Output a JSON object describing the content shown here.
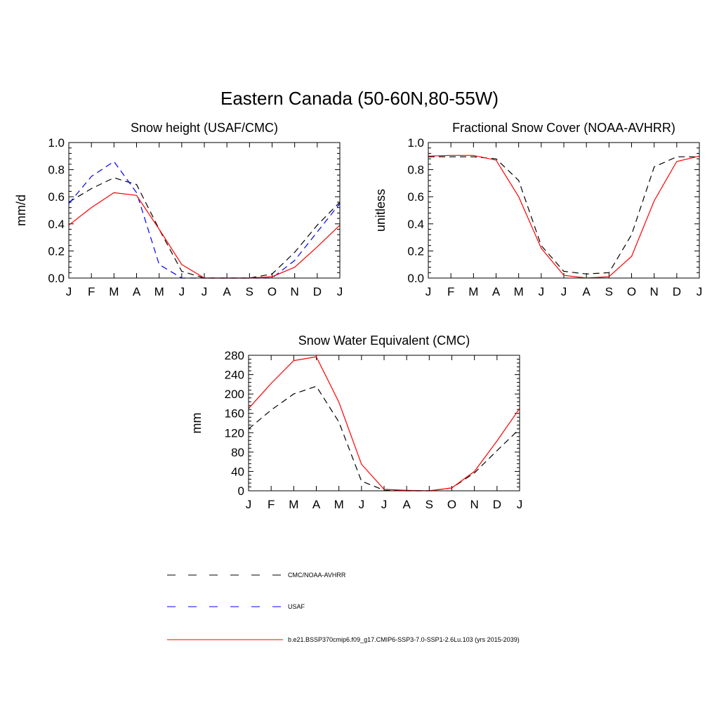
{
  "figure": {
    "title": "Eastern Canada (50-60N,80-55W)"
  },
  "chart_data": [
    {
      "type": "line",
      "title": "Snow height (USAF/CMC)",
      "xlabel": "",
      "ylabel": "mm/d",
      "categories": [
        "J",
        "F",
        "M",
        "A",
        "M",
        "J",
        "J",
        "A",
        "S",
        "O",
        "N",
        "D",
        "J"
      ],
      "ylim": [
        0,
        1.0
      ],
      "yticks": [
        0.0,
        0.2,
        0.4,
        0.6,
        0.8,
        1.0
      ],
      "ytick_labels": [
        "0.0",
        "0.2",
        "0.4",
        "0.6",
        "0.8",
        "1.0"
      ],
      "grid": false,
      "series": [
        {
          "name": "CMC/NOAA-AVHRR",
          "color": "#000000",
          "style": "dashed",
          "values": [
            0.56,
            0.66,
            0.74,
            0.69,
            0.36,
            0.05,
            0.0,
            0.0,
            0.0,
            0.03,
            0.19,
            0.39,
            0.56
          ]
        },
        {
          "name": "USAF",
          "color": "#0000ff",
          "style": "dashed",
          "values": [
            0.55,
            0.75,
            0.86,
            0.63,
            0.1,
            0.0,
            0.0,
            0.0,
            0.0,
            0.0,
            0.13,
            0.34,
            0.55
          ]
        },
        {
          "name": "b.e21.BSSP370cmip6.f09_g17.CMIP6-SSP3-7.0-SSP1-2.6Lu.103 (yrs 2015-2039)",
          "color": "#ff0000",
          "style": "solid",
          "values": [
            0.39,
            0.52,
            0.63,
            0.61,
            0.36,
            0.1,
            0.0,
            0.0,
            0.0,
            0.01,
            0.08,
            0.23,
            0.39
          ]
        }
      ]
    },
    {
      "type": "line",
      "title": "Fractional Snow Cover (NOAA-AVHRR)",
      "xlabel": "",
      "ylabel": "unitless",
      "categories": [
        "J",
        "F",
        "M",
        "A",
        "M",
        "J",
        "J",
        "A",
        "S",
        "O",
        "N",
        "D",
        "J"
      ],
      "ylim": [
        0,
        1.0
      ],
      "yticks": [
        0.0,
        0.2,
        0.4,
        0.6,
        0.8,
        1.0
      ],
      "ytick_labels": [
        "0.0",
        "0.2",
        "0.4",
        "0.6",
        "0.8",
        "1.0"
      ],
      "grid": false,
      "series": [
        {
          "name": "CMC/NOAA-AVHRR",
          "color": "#000000",
          "style": "dashed",
          "values": [
            0.895,
            0.895,
            0.895,
            0.88,
            0.72,
            0.24,
            0.05,
            0.03,
            0.04,
            0.32,
            0.82,
            0.895,
            0.895
          ]
        },
        {
          "name": "b.e21.BSSP370cmip6.f09_g17.CMIP6-SSP3-7.0-SSP1-2.6Lu.103 (yrs 2015-2039)",
          "color": "#ff0000",
          "style": "solid",
          "values": [
            0.9,
            0.905,
            0.905,
            0.87,
            0.6,
            0.22,
            0.02,
            0.0,
            0.01,
            0.16,
            0.57,
            0.86,
            0.9
          ]
        }
      ]
    },
    {
      "type": "line",
      "title": "Snow Water Equivalent (CMC)",
      "xlabel": "",
      "ylabel": "mm",
      "categories": [
        "J",
        "F",
        "M",
        "A",
        "M",
        "J",
        "J",
        "A",
        "S",
        "O",
        "N",
        "D",
        "J"
      ],
      "ylim": [
        0,
        280
      ],
      "yticks": [
        0,
        40,
        80,
        120,
        160,
        200,
        240,
        280
      ],
      "ytick_labels": [
        "0",
        "40",
        "80",
        "120",
        "160",
        "200",
        "240",
        "280"
      ],
      "grid": false,
      "series": [
        {
          "name": "CMC/NOAA-AVHRR",
          "color": "#000000",
          "style": "dashed",
          "values": [
            128,
            167,
            200,
            216,
            142,
            20,
            1,
            0,
            0,
            6,
            37,
            83,
            128
          ]
        },
        {
          "name": "b.e21.BSSP370cmip6.f09_g17.CMIP6-SSP3-7.0-SSP1-2.6Lu.103 (yrs 2015-2039)",
          "color": "#ff0000",
          "style": "solid",
          "values": [
            170,
            222,
            269,
            277,
            183,
            55,
            3,
            1,
            0,
            6,
            40,
            103,
            170
          ]
        }
      ]
    }
  ],
  "legend": {
    "placement": "bottom",
    "entries": [
      {
        "label": "CMC/NOAA-AVHRR",
        "color": "#000000",
        "style": "dashed"
      },
      {
        "label": "USAF",
        "color": "#0000ff",
        "style": "dashed"
      },
      {
        "label": "b.e21.BSSP370cmip6.f09_g17.CMIP6-SSP3-7.0-SSP1-2.6Lu.103 (yrs 2015-2039)",
        "color": "#ff0000",
        "style": "solid"
      }
    ]
  }
}
